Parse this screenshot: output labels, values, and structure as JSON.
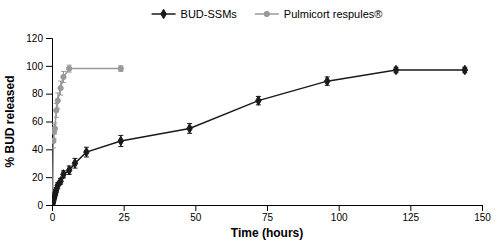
{
  "chart_data": {
    "type": "line",
    "xlabel": "Time (hours)",
    "ylabel": "% BUD released",
    "series": [
      {
        "name": "BUD-SSMs",
        "color": "#1a1a1a",
        "marker": "diamond",
        "x": [
          0.25,
          0.5,
          0.75,
          1,
          1.25,
          1.5,
          2,
          3,
          4,
          6,
          8,
          12,
          24,
          48,
          72,
          96,
          120,
          144
        ],
        "values": [
          1,
          3,
          5,
          7,
          9,
          11,
          14,
          17,
          22,
          25,
          30,
          38,
          46,
          55,
          75,
          89,
          97,
          97
        ],
        "errors": [
          0.5,
          0.8,
          1.0,
          1.2,
          1.3,
          1.5,
          2.0,
          2.0,
          2.5,
          3.0,
          3.5,
          3.5,
          4.0,
          3.5,
          3.0,
          3.0,
          2.0,
          2.0
        ]
      },
      {
        "name": "Pulmicort respules®",
        "color": "#999999",
        "marker": "circle",
        "x": [
          0.25,
          0.5,
          0.75,
          1,
          1.5,
          2,
          3,
          4,
          6,
          24
        ],
        "values": [
          2,
          46,
          53,
          55,
          68,
          75,
          84,
          92,
          98,
          98
        ],
        "errors": [
          1.0,
          5.0,
          5.0,
          4.0,
          5.0,
          5.5,
          5.0,
          4.0,
          2.5,
          2.0
        ]
      }
    ],
    "xlim": [
      0,
      150
    ],
    "ylim": [
      0,
      120
    ],
    "xticks": [
      0,
      25,
      50,
      75,
      100,
      125,
      150
    ],
    "yticks": [
      0,
      20,
      40,
      60,
      80,
      100,
      120
    ],
    "grid": false,
    "legend": "top"
  }
}
